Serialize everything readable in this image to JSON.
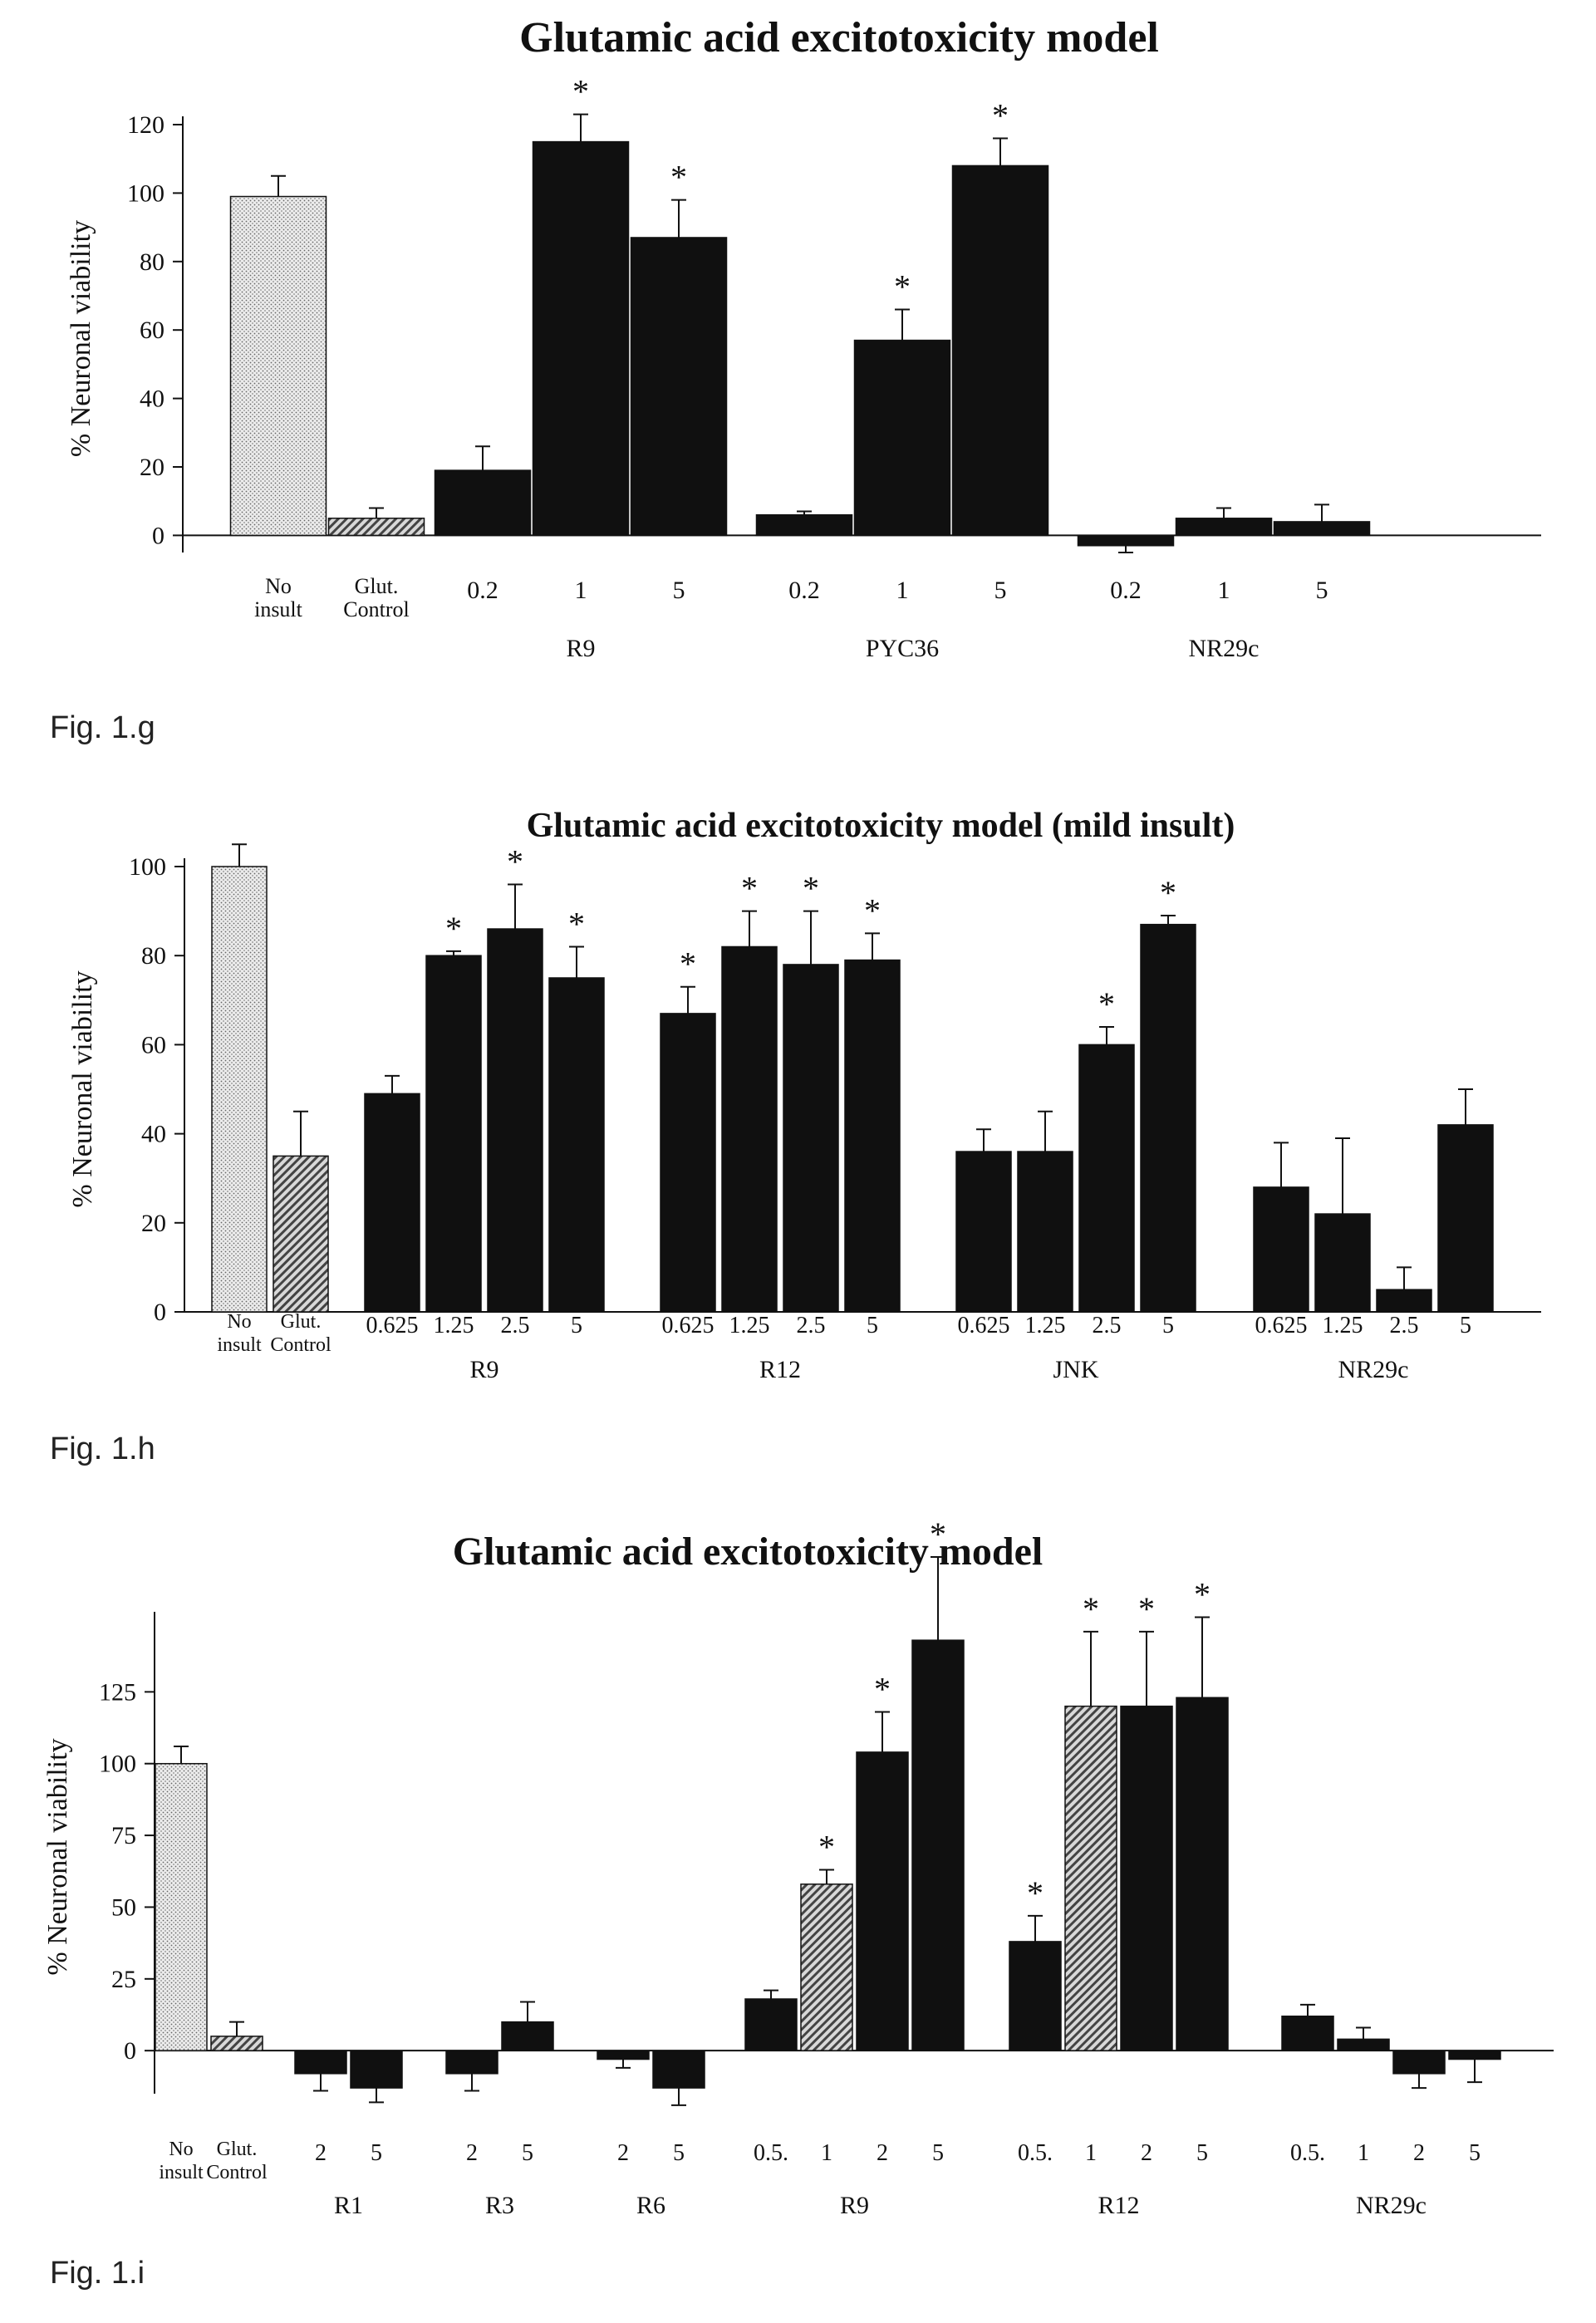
{
  "chart_data": [
    {
      "type": "bar",
      "title": "Glutamic acid excitotoxicity model",
      "ylabel": "% Neuronal viability",
      "ylim": [
        -5,
        120
      ],
      "yticks": [
        0,
        20,
        40,
        60,
        80,
        100,
        120
      ],
      "bars": [
        {
          "label": "No\ninsult",
          "value": 99,
          "error": 6,
          "star": false,
          "pattern": "dots"
        },
        {
          "label": "Glut.\nControl",
          "value": 5,
          "error": 3,
          "star": false,
          "pattern": "hatch"
        },
        {
          "label": "0.2",
          "value": 19,
          "error": 7,
          "star": false,
          "pattern": "solid"
        },
        {
          "label": "1",
          "value": 115,
          "error": 8,
          "star": true,
          "pattern": "solid"
        },
        {
          "label": "5",
          "value": 87,
          "error": 11,
          "star": true,
          "pattern": "solid"
        },
        {
          "label": "0.2",
          "value": 6,
          "error": 1,
          "star": false,
          "pattern": "solid"
        },
        {
          "label": "1",
          "value": 57,
          "error": 9,
          "star": true,
          "pattern": "solid"
        },
        {
          "label": "5",
          "value": 108,
          "error": 8,
          "star": true,
          "pattern": "solid"
        },
        {
          "label": "0.2",
          "value": -3,
          "error": 2,
          "star": false,
          "pattern": "solid"
        },
        {
          "label": "1",
          "value": 5,
          "error": 3,
          "star": false,
          "pattern": "solid"
        },
        {
          "label": "5",
          "value": 4,
          "error": 5,
          "star": false,
          "pattern": "solid"
        }
      ],
      "groups": [
        {
          "name": "R9",
          "from": 2,
          "to": 4
        },
        {
          "name": "PYC36",
          "from": 5,
          "to": 7
        },
        {
          "name": "NR29c",
          "from": 8,
          "to": 10
        }
      ]
    },
    {
      "type": "bar",
      "title": "Glutamic acid excitotoxicity model (mild insult)",
      "ylabel": "% Neuronal viability",
      "ylim": [
        0,
        100
      ],
      "yticks": [
        0,
        20,
        40,
        60,
        80,
        100
      ],
      "bars": [
        {
          "label": "No\ninsult",
          "value": 100,
          "error": 5,
          "star": false,
          "pattern": "dots"
        },
        {
          "label": "Glut.\nControl",
          "value": 35,
          "error": 10,
          "star": false,
          "pattern": "hatch"
        },
        {
          "label": "0.625",
          "value": 49,
          "error": 4,
          "star": false,
          "pattern": "solid"
        },
        {
          "label": "1.25",
          "value": 80,
          "error": 1,
          "star": true,
          "pattern": "solid"
        },
        {
          "label": "2.5",
          "value": 86,
          "error": 10,
          "star": true,
          "pattern": "solid"
        },
        {
          "label": "5",
          "value": 75,
          "error": 7,
          "star": true,
          "pattern": "solid"
        },
        {
          "label": "0.625",
          "value": 67,
          "error": 6,
          "star": true,
          "pattern": "solid"
        },
        {
          "label": "1.25",
          "value": 82,
          "error": 8,
          "star": true,
          "pattern": "solid"
        },
        {
          "label": "2.5",
          "value": 78,
          "error": 12,
          "star": true,
          "pattern": "solid"
        },
        {
          "label": "5",
          "value": 79,
          "error": 6,
          "star": true,
          "pattern": "solid"
        },
        {
          "label": "0.625",
          "value": 36,
          "error": 5,
          "star": false,
          "pattern": "solid"
        },
        {
          "label": "1.25",
          "value": 36,
          "error": 9,
          "star": false,
          "pattern": "solid"
        },
        {
          "label": "2.5",
          "value": 60,
          "error": 4,
          "star": true,
          "pattern": "solid"
        },
        {
          "label": "5",
          "value": 87,
          "error": 2,
          "star": true,
          "pattern": "solid"
        },
        {
          "label": "0.625",
          "value": 28,
          "error": 10,
          "star": false,
          "pattern": "solid"
        },
        {
          "label": "1.25",
          "value": 22,
          "error": 17,
          "star": false,
          "pattern": "solid"
        },
        {
          "label": "2.5",
          "value": 5,
          "error": 5,
          "star": false,
          "pattern": "solid"
        },
        {
          "label": "5",
          "value": 42,
          "error": 8,
          "star": false,
          "pattern": "solid"
        }
      ],
      "groups": [
        {
          "name": "R9",
          "from": 2,
          "to": 5
        },
        {
          "name": "R12",
          "from": 6,
          "to": 9
        },
        {
          "name": "JNK",
          "from": 10,
          "to": 13
        },
        {
          "name": "NR29c",
          "from": 14,
          "to": 17
        }
      ]
    },
    {
      "type": "bar",
      "title": "Glutamic acid excitotoxicity model",
      "ylabel": "% Neuronal viability",
      "ylim": [
        -15,
        150
      ],
      "yticks": [
        0,
        25,
        50,
        75,
        100,
        125
      ],
      "bars": [
        {
          "label": "No\ninsult",
          "value": 100,
          "error": 6,
          "star": false,
          "pattern": "dots"
        },
        {
          "label": "Glut.\nControl",
          "value": 5,
          "error": 5,
          "star": false,
          "pattern": "hatch"
        },
        {
          "label": "2",
          "value": -8,
          "error": 6,
          "star": false,
          "pattern": "solid"
        },
        {
          "label": "5",
          "value": -13,
          "error": 5,
          "star": false,
          "pattern": "solid"
        },
        {
          "label": "2",
          "value": -8,
          "error": 6,
          "star": false,
          "pattern": "solid"
        },
        {
          "label": "5",
          "value": 10,
          "error": 7,
          "star": false,
          "pattern": "solid"
        },
        {
          "label": "2",
          "value": -3,
          "error": 3,
          "star": false,
          "pattern": "solid"
        },
        {
          "label": "5",
          "value": -13,
          "error": 6,
          "star": false,
          "pattern": "solid"
        },
        {
          "label": "0.5.",
          "value": 18,
          "error": 3,
          "star": false,
          "pattern": "solid"
        },
        {
          "label": "1",
          "value": 58,
          "error": 5,
          "star": true,
          "pattern": "hatch"
        },
        {
          "label": "2",
          "value": 104,
          "error": 14,
          "star": true,
          "pattern": "solid"
        },
        {
          "label": "5",
          "value": 143,
          "error": 29,
          "star": true,
          "pattern": "solid"
        },
        {
          "label": "0.5.",
          "value": 38,
          "error": 9,
          "star": true,
          "pattern": "solid"
        },
        {
          "label": "1",
          "value": 120,
          "error": 26,
          "star": true,
          "pattern": "hatch"
        },
        {
          "label": "2",
          "value": 120,
          "error": 26,
          "star": true,
          "pattern": "solid"
        },
        {
          "label": "5",
          "value": 123,
          "error": 28,
          "star": true,
          "pattern": "solid"
        },
        {
          "label": "0.5.",
          "value": 12,
          "error": 4,
          "star": false,
          "pattern": "solid"
        },
        {
          "label": "1",
          "value": 4,
          "error": 4,
          "star": false,
          "pattern": "solid"
        },
        {
          "label": "2",
          "value": -8,
          "error": 5,
          "star": false,
          "pattern": "solid"
        },
        {
          "label": "5",
          "value": -3,
          "error": 8,
          "star": false,
          "pattern": "solid"
        }
      ],
      "groups": [
        {
          "name": "R1",
          "from": 2,
          "to": 3
        },
        {
          "name": "R3",
          "from": 4,
          "to": 5
        },
        {
          "name": "R6",
          "from": 6,
          "to": 7
        },
        {
          "name": "R9",
          "from": 8,
          "to": 11
        },
        {
          "name": "R12",
          "from": 12,
          "to": 15
        },
        {
          "name": "NR29c",
          "from": 16,
          "to": 19
        }
      ]
    }
  ],
  "captions": {
    "g": "Fig. 1.g",
    "h": "Fig. 1.h",
    "i": "Fig. 1.i"
  }
}
